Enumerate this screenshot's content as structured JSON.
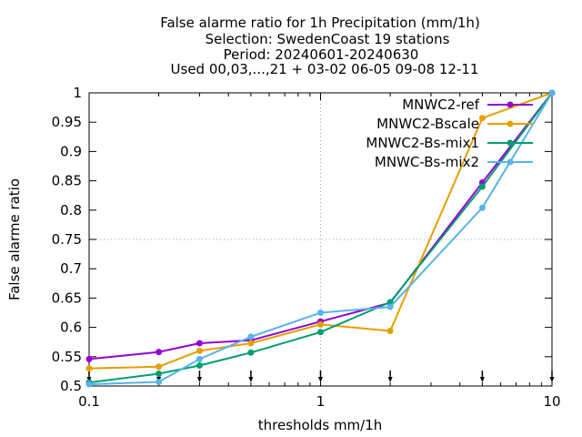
{
  "chart_data": {
    "type": "line",
    "title_lines": [
      "False alarme ratio  for 1h Precipitation (mm/1h)",
      "Selection: SwedenCoast     19 stations",
      "Period: 20240601-20240630",
      "Used 00,03,...,21 + 03-02 06-05 09-08 12-11"
    ],
    "xlabel": "thresholds mm/1h",
    "ylabel": "False alarme ratio",
    "x_scale": "log",
    "xlim": [
      0.1,
      10
    ],
    "ylim": [
      0.5,
      1.0
    ],
    "x_ticks": [
      0.1,
      1,
      10
    ],
    "x_tick_labels": [
      "0.1",
      "1",
      "10"
    ],
    "y_ticks": [
      0.5,
      0.55,
      0.6,
      0.65,
      0.7,
      0.75,
      0.8,
      0.85,
      0.9,
      0.95,
      1.0
    ],
    "y_tick_labels": [
      "0.5",
      "0.55",
      "0.6",
      "0.65",
      "0.7",
      "0.75",
      "0.8",
      "0.85",
      "0.9",
      "0.95",
      "1"
    ],
    "grid": "dotted lines at x=1 and y=0.75",
    "legend_position": "top-right",
    "x": [
      0.1,
      0.2,
      0.3,
      0.5,
      1,
      2,
      5,
      10
    ],
    "threshold_arrow_x": [
      0.1,
      0.2,
      0.3,
      0.5,
      1,
      2,
      5,
      10
    ],
    "series": [
      {
        "name": "MNWC2-ref",
        "color": "#9400d3",
        "marker": "filled-circle",
        "values": [
          0.546,
          0.558,
          0.573,
          0.578,
          0.61,
          0.642,
          0.847,
          1.0
        ]
      },
      {
        "name": "MNWC2-Bscale",
        "color": "#e69f00",
        "marker": "filled-circle",
        "values": [
          0.53,
          0.533,
          0.56,
          0.573,
          0.605,
          0.594,
          0.957,
          1.0
        ]
      },
      {
        "name": "MNWC2-Bs-mix1",
        "color": "#009e73",
        "marker": "filled-circle",
        "values": [
          0.506,
          0.521,
          0.535,
          0.557,
          0.592,
          0.643,
          0.84,
          1.0
        ]
      },
      {
        "name": "MNWC-Bs-mix2",
        "color": "#56b4e9",
        "marker": "filled-circle",
        "values": [
          0.503,
          0.507,
          0.546,
          0.584,
          0.625,
          0.635,
          0.804,
          1.0
        ]
      }
    ]
  }
}
